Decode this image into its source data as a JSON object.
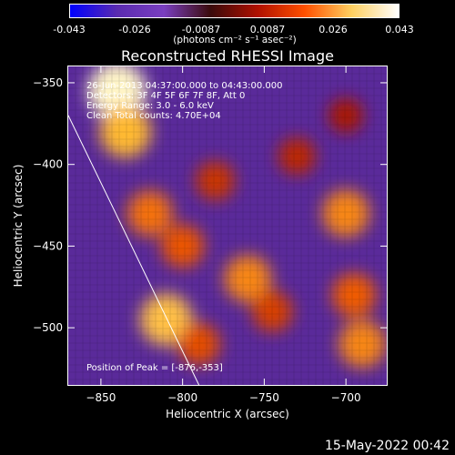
{
  "colorbar": {
    "tick_labels": [
      "-0.043",
      "-0.026",
      "-0.0087",
      "0.0087",
      "0.026",
      "0.043"
    ],
    "units_label": "(photons cm⁻² s⁻¹ asec⁻²)",
    "colors": [
      "#0000ff",
      "#5a2bb0",
      "#7a3fc0",
      "#3a0a0a",
      "#b01000",
      "#ff5000",
      "#ffd060",
      "#ffffff"
    ]
  },
  "chart_data": {
    "type": "heatmap",
    "title": "Reconstructed RHESSI Image",
    "xlabel": "Heliocentric X (arcsec)",
    "ylabel": "Heliocentric Y (arcsec)",
    "xlim": [
      -870,
      -675
    ],
    "ylim": [
      -535,
      -340
    ],
    "x_ticks": [
      -850,
      -800,
      -750,
      -700
    ],
    "y_ticks": [
      -350,
      -400,
      -450,
      -500
    ],
    "x_tick_labels": [
      "−850",
      "−800",
      "−750",
      "−700"
    ],
    "y_tick_labels": [
      "−350",
      "−400",
      "−450",
      "−500"
    ],
    "value_range": [
      -0.043,
      0.043
    ],
    "info_lines": [
      "26-Jun-2013 04:37:00.000 to 04:43:00.000",
      "Detectors: 3F 4F 5F 6F 7F 8F, Att 0",
      "Energy Range: 3.0 - 6.0 keV",
      "Clean     Total counts: 4.70E+04"
    ],
    "peak_label": "Position of Peak = [-876,-353]",
    "peak_position": [
      -876,
      -353
    ],
    "limb_line": [
      [
        -870,
        -370
      ],
      [
        -790,
        -535
      ]
    ],
    "sources": [
      {
        "x": -840,
        "y": -355,
        "value": 0.043
      },
      {
        "x": -835,
        "y": -380,
        "value": 0.035
      },
      {
        "x": -820,
        "y": -430,
        "value": 0.028
      },
      {
        "x": -800,
        "y": -450,
        "value": 0.025
      },
      {
        "x": -760,
        "y": -470,
        "value": 0.03
      },
      {
        "x": -745,
        "y": -490,
        "value": 0.022
      },
      {
        "x": -810,
        "y": -495,
        "value": 0.036
      },
      {
        "x": -790,
        "y": -510,
        "value": 0.024
      },
      {
        "x": -700,
        "y": -430,
        "value": 0.03
      },
      {
        "x": -695,
        "y": -480,
        "value": 0.026
      },
      {
        "x": -690,
        "y": -510,
        "value": 0.03
      },
      {
        "x": -780,
        "y": -410,
        "value": 0.02
      },
      {
        "x": -730,
        "y": -395,
        "value": 0.018
      },
      {
        "x": -700,
        "y": -370,
        "value": 0.015
      }
    ]
  },
  "footer": {
    "date": "15-May-2022 00:42"
  }
}
